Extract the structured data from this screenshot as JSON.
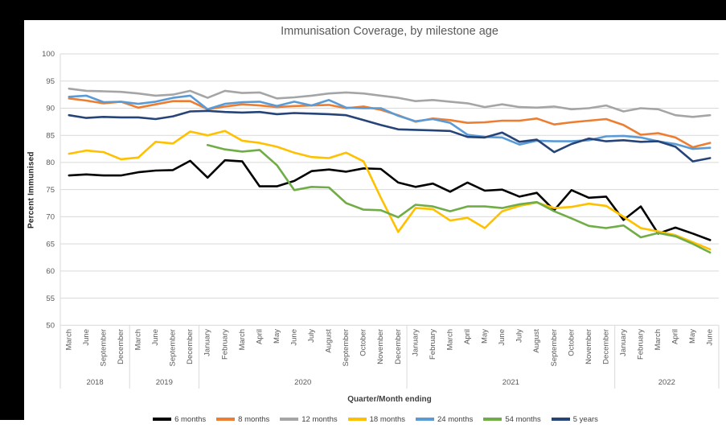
{
  "chart_data": {
    "type": "line",
    "title": "Immunisation Coverage, by milestone age",
    "xlabel": "Quarter/Month ending",
    "ylabel": "Percent Immunised",
    "ylim": [
      50,
      100
    ],
    "ytick_step": 5,
    "grid": true,
    "legend_position": "bottom",
    "x_groups": [
      {
        "year": "2018",
        "months": [
          "March",
          "June",
          "September",
          "December"
        ]
      },
      {
        "year": "2019",
        "months": [
          "March",
          "June",
          "September",
          "December"
        ]
      },
      {
        "year": "2020",
        "months": [
          "January",
          "February",
          "March",
          "April",
          "May",
          "June",
          "July",
          "August",
          "September",
          "October",
          "November",
          "December"
        ]
      },
      {
        "year": "2021",
        "months": [
          "January",
          "February",
          "March",
          "April",
          "May",
          "June",
          "July",
          "August",
          "September",
          "October",
          "November",
          "December"
        ]
      },
      {
        "year": "2022",
        "months": [
          "January",
          "February",
          "March",
          "April",
          "May",
          "June"
        ]
      }
    ],
    "series": [
      {
        "name": "6 months",
        "color": "#000000",
        "values": [
          77.6,
          77.8,
          77.6,
          77.6,
          78.2,
          78.5,
          78.6,
          80.3,
          77.2,
          80.4,
          80.2,
          75.6,
          75.6,
          76.6,
          78.4,
          78.7,
          78.3,
          78.9,
          78.8,
          76.3,
          75.5,
          76.1,
          74.6,
          76.3,
          74.8,
          75.0,
          73.7,
          74.4,
          71.2,
          74.9,
          73.5,
          73.7,
          69.4,
          71.9,
          66.9,
          68.0,
          66.9,
          65.7
        ]
      },
      {
        "name": "8 months",
        "color": "#ED7D31",
        "values": [
          91.8,
          91.4,
          90.9,
          91.2,
          90.1,
          90.7,
          91.3,
          91.3,
          89.8,
          90.3,
          90.7,
          90.5,
          90.2,
          90.4,
          90.5,
          90.6,
          90.0,
          90.3,
          89.7,
          88.7,
          87.5,
          88.1,
          87.8,
          87.3,
          87.4,
          87.7,
          87.7,
          88.1,
          87.0,
          87.4,
          87.7,
          88.0,
          86.9,
          85.1,
          85.4,
          84.6,
          82.8,
          83.6
        ]
      },
      {
        "name": "12 months",
        "color": "#A5A5A5",
        "values": [
          93.6,
          93.2,
          93.1,
          93.0,
          92.7,
          92.3,
          92.5,
          93.2,
          91.9,
          93.2,
          92.8,
          92.9,
          91.8,
          92.0,
          92.3,
          92.7,
          92.9,
          92.7,
          92.3,
          91.9,
          91.3,
          91.5,
          91.2,
          90.9,
          90.2,
          90.7,
          90.2,
          90.1,
          90.3,
          89.8,
          90.0,
          90.5,
          89.4,
          90.0,
          89.8,
          88.7,
          88.4,
          88.7
        ]
      },
      {
        "name": "18 months",
        "color": "#FFC000",
        "values": [
          81.6,
          82.2,
          81.9,
          80.6,
          80.9,
          83.8,
          83.5,
          85.7,
          85.0,
          85.8,
          84.0,
          83.6,
          82.9,
          81.8,
          81.0,
          80.8,
          81.8,
          80.2,
          73.5,
          67.2,
          71.6,
          71.4,
          69.3,
          69.8,
          67.9,
          71.0,
          72.0,
          72.6,
          71.6,
          71.8,
          72.4,
          72.0,
          70.0,
          67.9,
          67.3,
          66.6,
          65.3,
          64.0
        ]
      },
      {
        "name": "24 months",
        "color": "#5B9BD5",
        "values": [
          92.1,
          92.3,
          91.1,
          91.2,
          90.8,
          91.2,
          91.9,
          92.3,
          89.8,
          90.8,
          91.1,
          91.2,
          90.4,
          91.2,
          90.5,
          91.5,
          90.1,
          90.0,
          90.0,
          88.6,
          87.6,
          88.0,
          87.3,
          85.1,
          84.7,
          84.6,
          83.3,
          84.0,
          83.9,
          83.9,
          84.1,
          84.8,
          84.9,
          84.6,
          83.9,
          83.4,
          82.5,
          82.7
        ]
      },
      {
        "name": "54 months",
        "color": "#70AD47",
        "values": [
          null,
          null,
          null,
          null,
          null,
          null,
          null,
          null,
          83.2,
          82.4,
          82.0,
          82.3,
          79.5,
          74.9,
          75.5,
          75.4,
          72.5,
          71.3,
          71.2,
          69.9,
          72.2,
          71.9,
          71.0,
          71.9,
          71.9,
          71.6,
          72.3,
          72.7,
          71.0,
          69.7,
          68.3,
          67.9,
          68.4,
          66.2,
          67.0,
          66.4,
          65.0,
          63.4
        ]
      },
      {
        "name": "5 years",
        "color": "#264478",
        "values": [
          88.7,
          88.2,
          88.4,
          88.3,
          88.3,
          88.0,
          88.5,
          89.4,
          89.5,
          89.3,
          89.2,
          89.3,
          88.9,
          89.1,
          89.0,
          88.9,
          88.7,
          87.8,
          86.9,
          86.1,
          86.0,
          85.9,
          85.8,
          84.7,
          84.6,
          85.5,
          83.8,
          84.2,
          81.9,
          83.4,
          84.4,
          83.9,
          84.1,
          83.8,
          83.9,
          82.9,
          80.2,
          80.8
        ]
      }
    ],
    "axis_colors": {
      "gridline": "#D9D9D9",
      "tick_label": "#595959"
    }
  }
}
